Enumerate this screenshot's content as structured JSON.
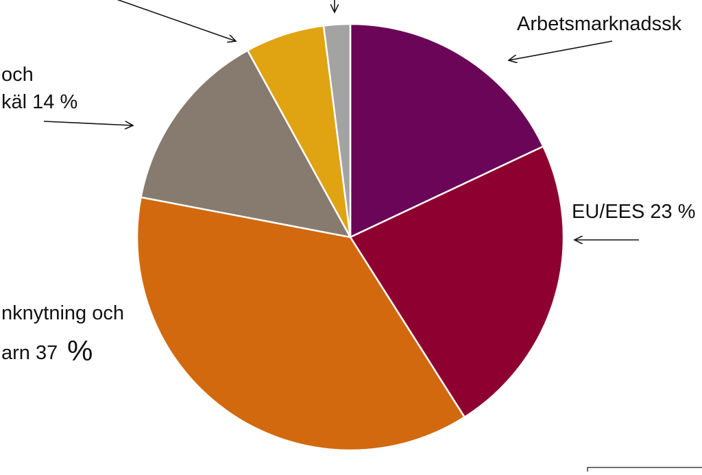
{
  "chart_data": {
    "type": "pie",
    "start_angle_deg": 0,
    "direction": "clockwise",
    "slices": [
      {
        "label": "Arbetsmarknadssk",
        "value": 18,
        "color": "#6a0557"
      },
      {
        "label": "EU/EES 23 %",
        "value": 23,
        "color": "#8e0030"
      },
      {
        "label": "nknytning och arn 37 %",
        "value": 37,
        "color": "#d2690e"
      },
      {
        "label": "och käl 14 %",
        "value": 14,
        "color": "#877b70"
      },
      {
        "label": "",
        "value": 6,
        "color": "#e0a312"
      },
      {
        "label": "",
        "value": 2,
        "color": "#a3a3a3"
      }
    ],
    "labels": {
      "arbetsmarknad": "Arbetsmarknadssk",
      "eu": "EU/EES 23 %",
      "familj_line1": "nknytning och",
      "familj_line2": "arn 37",
      "familj_percent": "%",
      "skydd_line1": "och",
      "skydd_line2": "käl 14 %"
    },
    "legend": "none"
  }
}
